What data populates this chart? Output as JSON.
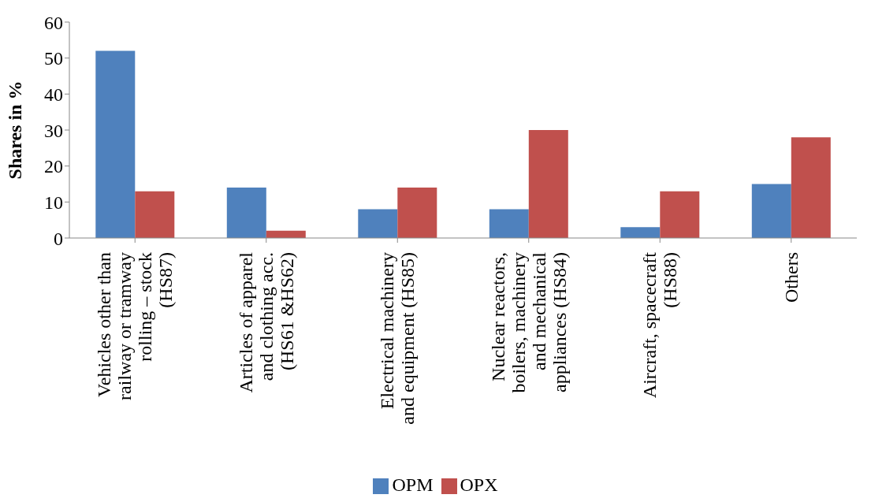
{
  "chart_data": {
    "type": "bar",
    "ylabel": "Shares in %",
    "categories": [
      "Vehicles other than railway or tramway rolling – stock (HS87)",
      "Articles of apparel and clothing acc. (HS61 &HS62)",
      "Electrical machinery and equipment (HS85)",
      "Nuclear reactors, boilers, machinery and mechanical appliances (HS84)",
      "Aircraft, spacecraft (HS88)",
      "Others"
    ],
    "series": [
      {
        "name": "OPM",
        "color": "#4f81bd",
        "values": [
          52,
          14,
          8,
          8,
          3,
          15
        ]
      },
      {
        "name": "OPX",
        "color": "#c0504d",
        "values": [
          13,
          2,
          14,
          30,
          13,
          28
        ]
      }
    ],
    "ylim": [
      0,
      60
    ],
    "yticks": [
      0,
      10,
      20,
      30,
      40,
      50,
      60
    ],
    "grid": false,
    "legend": "bottom"
  }
}
